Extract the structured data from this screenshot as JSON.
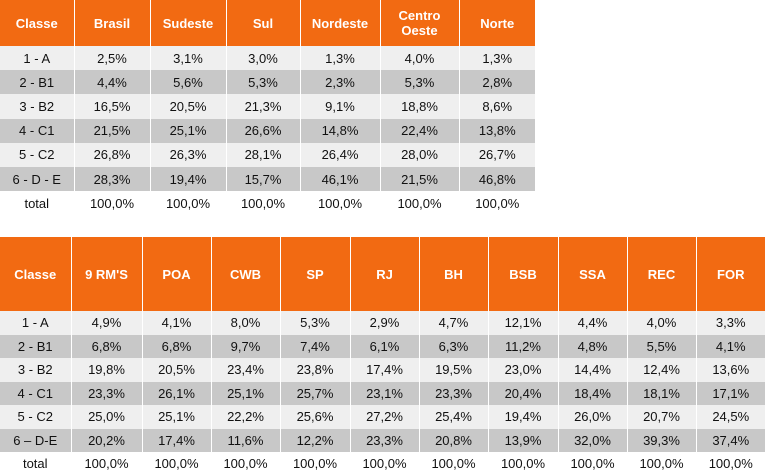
{
  "regions_table": {
    "headers": [
      "Classe",
      "Brasil",
      "Sudeste",
      "Sul",
      "Nordeste",
      "Centro Oeste",
      "Norte"
    ],
    "rows": [
      [
        "1 - A",
        "2,5%",
        "3,1%",
        "3,0%",
        "1,3%",
        "4,0%",
        "1,3%"
      ],
      [
        "2 - B1",
        "4,4%",
        "5,6%",
        "5,3%",
        "2,3%",
        "5,3%",
        "2,8%"
      ],
      [
        "3 - B2",
        "16,5%",
        "20,5%",
        "21,3%",
        "9,1%",
        "18,8%",
        "8,6%"
      ],
      [
        "4 - C1",
        "21,5%",
        "25,1%",
        "26,6%",
        "14,8%",
        "22,4%",
        "13,8%"
      ],
      [
        "5 - C2",
        "26,8%",
        "26,3%",
        "28,1%",
        "26,4%",
        "28,0%",
        "26,7%"
      ],
      [
        "6 - D - E",
        "28,3%",
        "19,4%",
        "15,7%",
        "46,1%",
        "21,5%",
        "46,8%"
      ],
      [
        "total",
        "100,0%",
        "100,0%",
        "100,0%",
        "100,0%",
        "100,0%",
        "100,0%"
      ]
    ]
  },
  "metros_table": {
    "headers": [
      "Classe",
      "9 RM'S",
      "POA",
      "CWB",
      "SP",
      "RJ",
      "BH",
      "BSB",
      "SSA",
      "REC",
      "FOR"
    ],
    "rows": [
      [
        "1 - A",
        "4,9%",
        "4,1%",
        "8,0%",
        "5,3%",
        "2,9%",
        "4,7%",
        "12,1%",
        "4,4%",
        "4,0%",
        "3,3%"
      ],
      [
        "2 - B1",
        "6,8%",
        "6,8%",
        "9,7%",
        "7,4%",
        "6,1%",
        "6,3%",
        "11,2%",
        "4,8%",
        "5,5%",
        "4,1%"
      ],
      [
        "3 - B2",
        "19,8%",
        "20,5%",
        "23,4%",
        "23,8%",
        "17,4%",
        "19,5%",
        "23,0%",
        "14,4%",
        "12,4%",
        "13,6%"
      ],
      [
        "4 - C1",
        "23,3%",
        "26,1%",
        "25,1%",
        "25,7%",
        "23,1%",
        "23,3%",
        "20,4%",
        "18,4%",
        "18,1%",
        "17,1%"
      ],
      [
        "5 - C2",
        "25,0%",
        "25,1%",
        "22,2%",
        "25,6%",
        "27,2%",
        "25,4%",
        "19,4%",
        "26,0%",
        "20,7%",
        "24,5%"
      ],
      [
        "6 – D-E",
        "20,2%",
        "17,4%",
        "11,6%",
        "12,2%",
        "23,3%",
        "20,8%",
        "13,9%",
        "32,0%",
        "39,3%",
        "37,4%"
      ],
      [
        "total",
        "100,0%",
        "100,0%",
        "100,0%",
        "100,0%",
        "100,0%",
        "100,0%",
        "100,0%",
        "100,0%",
        "100,0%",
        "100,0%"
      ]
    ]
  },
  "colors": {
    "header_bg": "#f26a12",
    "header_text": "#ffffff",
    "row_light": "#efefef",
    "row_dark": "#c8c8c8"
  }
}
